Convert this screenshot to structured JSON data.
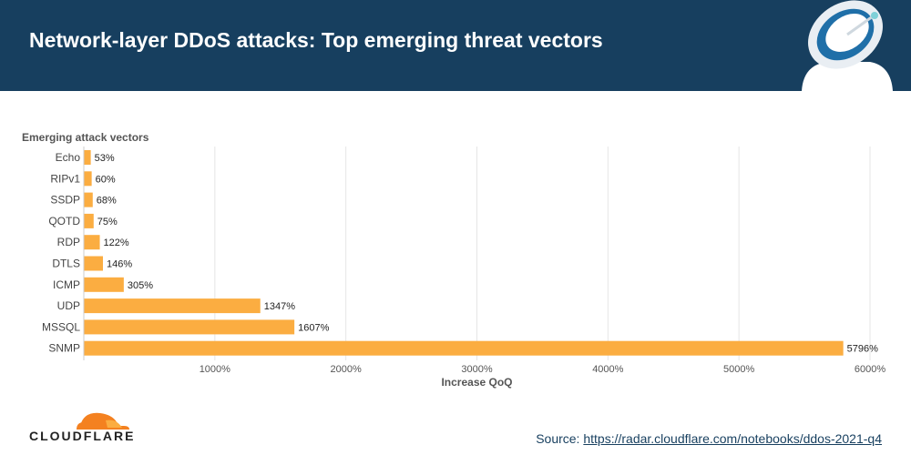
{
  "header": {
    "title": "Network-layer DDoS attacks: Top emerging threat vectors"
  },
  "chart_data": {
    "type": "bar",
    "orientation": "horizontal",
    "title": "Emerging attack vectors",
    "xlabel": "Increase QoQ",
    "ylabel": "",
    "categories": [
      "Echo",
      "RIPv1",
      "SSDP",
      "QOTD",
      "RDP",
      "DTLS",
      "ICMP",
      "UDP",
      "MSSQL",
      "SNMP"
    ],
    "values": [
      53,
      60,
      68,
      75,
      122,
      146,
      305,
      1347,
      1607,
      5796
    ],
    "value_labels": [
      "53%",
      "60%",
      "68%",
      "75%",
      "122%",
      "146%",
      "305%",
      "1347%",
      "1607%",
      "5796%"
    ],
    "xlim": [
      0,
      6000
    ],
    "x_ticks": [
      1000,
      2000,
      3000,
      4000,
      5000,
      6000
    ],
    "x_tick_labels": [
      "1000%",
      "2000%",
      "3000%",
      "4000%",
      "5000%",
      "6000%"
    ],
    "grid": "vertical",
    "legend": "none",
    "bar_color": "#fbad41"
  },
  "footer": {
    "brand": "CLOUDFLARE",
    "source_prefix": "Source: ",
    "source_url": "https://radar.cloudflare.com/notebooks/ddos-2021-q4"
  },
  "icons": {
    "logo": "cloudflare-cloud-icon",
    "header_art": "satellite-dish-icon"
  },
  "colors": {
    "header_bg": "#173f5f",
    "bar": "#fbad41",
    "logo_orange": "#f48120"
  }
}
